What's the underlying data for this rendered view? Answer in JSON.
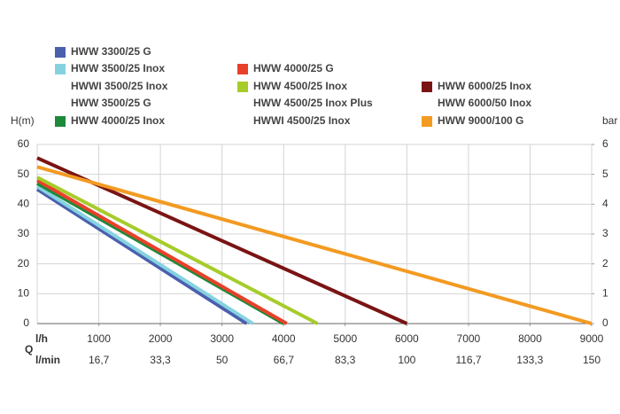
{
  "chart_data": {
    "type": "line",
    "y_label": "H(m)",
    "y2_label": "bar",
    "x_label": "Q",
    "x_unit": "l/h",
    "x2_unit": "l/min",
    "xlim": [
      0,
      9000
    ],
    "xticks": [
      1000,
      2000,
      3000,
      4000,
      5000,
      6000,
      7000,
      8000,
      9000
    ],
    "x2lim": [
      0,
      150
    ],
    "x2ticks": [
      {
        "value": 16.7,
        "label": "16,7"
      },
      {
        "value": 33.3,
        "label": "33,3"
      },
      50,
      {
        "value": 66.7,
        "label": "66,7"
      },
      {
        "value": 83.3,
        "label": "83,3"
      },
      100,
      {
        "value": 116.7,
        "label": "116,7"
      },
      {
        "value": 133.3,
        "label": "133,3"
      },
      150
    ],
    "ylim": [
      0,
      60
    ],
    "yticks": [
      0,
      10,
      20,
      30,
      40,
      50,
      60
    ],
    "y2lim": [
      0,
      6
    ],
    "y2ticks": [
      0,
      1,
      2,
      3,
      4,
      5,
      6
    ],
    "grid": true,
    "series": [
      {
        "name": "HWW 3300/25 G",
        "color": "#4a5fae",
        "x": [
          0,
          3400
        ],
        "values": [
          45,
          0
        ]
      },
      {
        "name": "HWW 3500/25 Inox",
        "color": "#86d3e0",
        "also": [
          "HWWI 3500/25 Inox",
          "HWW 3500/25 G"
        ],
        "x": [
          0,
          3500
        ],
        "values": [
          46,
          0
        ]
      },
      {
        "name": "HWW 4000/25 Inox",
        "color": "#1d8a3a",
        "x": [
          0,
          4000
        ],
        "values": [
          47,
          0
        ]
      },
      {
        "name": "HWW 4000/25 G",
        "color": "#e8412a",
        "x": [
          0,
          4050
        ],
        "values": [
          48,
          0
        ]
      },
      {
        "name": "HWW 4500/25 Inox",
        "color": "#a6cc2a",
        "also": [
          "HWW 4500/25 Inox Plus",
          "HWWI 4500/25 Inox"
        ],
        "x": [
          0,
          4550
        ],
        "values": [
          49,
          0
        ]
      },
      {
        "name": "HWW 6000/25 Inox",
        "color": "#7a1414",
        "also": [
          "HWW 6000/50 Inox"
        ],
        "x": [
          0,
          6000
        ],
        "values": [
          55.5,
          0
        ]
      },
      {
        "name": "HWW 9000/100 G",
        "color": "#f39a21",
        "x": [
          0,
          9000
        ],
        "values": [
          52.5,
          0
        ]
      }
    ]
  }
}
